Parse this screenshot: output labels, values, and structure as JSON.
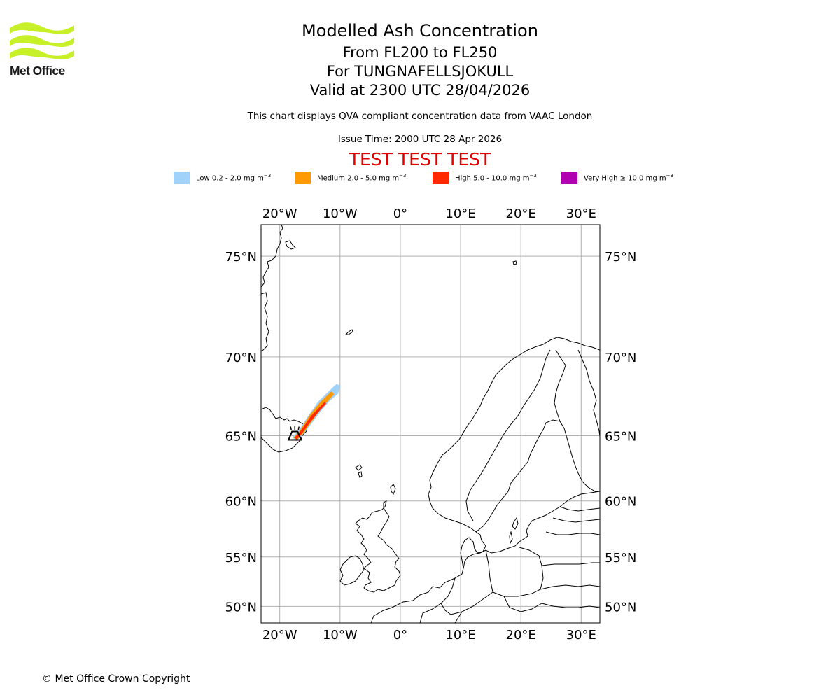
{
  "logo": {
    "text": "Met Office",
    "color": "#c8f028"
  },
  "header": {
    "title": "Modelled Ash Concentration",
    "level_range": "From FL200 to FL250",
    "volcano": "For TUNGNAFELLSJOKULL",
    "valid_time": "Valid at 2300 UTC 28/04/2026",
    "description": "This chart displays QVA compliant concentration data from VAAC London",
    "issue_time": "Issue Time: 2000 UTC 28 Apr 2026",
    "test_banner": "TEST TEST TEST"
  },
  "legend": [
    {
      "label": "Low 0.2 - 2.0 mg m",
      "unit_exp": "−3",
      "color": "#a0d2fa"
    },
    {
      "label": "Medium 2.0 - 5.0 mg m",
      "unit_exp": "−3",
      "color": "#ff9a00"
    },
    {
      "label": "High 5.0 - 10.0 mg m",
      "unit_exp": "−3",
      "color": "#ff2a00"
    },
    {
      "label": "Very High  ≥  10.0 mg m",
      "unit_exp": "−3",
      "color": "#b000b0"
    }
  ],
  "map": {
    "lon_ticks": [
      {
        "lon": -20,
        "label": "20°W"
      },
      {
        "lon": -10,
        "label": "10°W"
      },
      {
        "lon": 0,
        "label": "0°"
      },
      {
        "lon": 10,
        "label": "10°E"
      },
      {
        "lon": 20,
        "label": "20°E"
      },
      {
        "lon": 30,
        "label": "30°E"
      }
    ],
    "lat_ticks": [
      {
        "lat": 75,
        "label": "75°N"
      },
      {
        "lat": 70,
        "label": "70°N"
      },
      {
        "lat": 65,
        "label": "65°N"
      },
      {
        "lat": 60,
        "label": "60°N"
      },
      {
        "lat": 55,
        "label": "55°N"
      },
      {
        "lat": 50,
        "label": "50°N"
      }
    ],
    "lon_range": [
      -23.1,
      33.1
    ],
    "lat_range": [
      48.2,
      76.3
    ],
    "grid": true,
    "volcano_icon": "volcano-triangle-icon",
    "volcano_lon": -17.5,
    "volcano_lat": 65.0,
    "plume": [
      {
        "level": "low",
        "color": "#a0d2fa",
        "path": [
          [
            -17.9,
            64.9
          ],
          [
            -16.8,
            65.4
          ],
          [
            -15.2,
            66.4
          ],
          [
            -13.6,
            67.3
          ],
          [
            -12.0,
            67.9
          ],
          [
            -10.6,
            68.4
          ],
          [
            -10.0,
            68.3
          ],
          [
            -10.3,
            67.8
          ],
          [
            -11.8,
            67.3
          ],
          [
            -13.3,
            66.6
          ],
          [
            -14.8,
            65.8
          ],
          [
            -16.3,
            65.0
          ],
          [
            -17.3,
            64.6
          ]
        ]
      },
      {
        "level": "medium",
        "color": "#ff9a00",
        "path": [
          [
            -17.7,
            64.85
          ],
          [
            -16.5,
            65.45
          ],
          [
            -14.9,
            66.5
          ],
          [
            -13.2,
            67.3
          ],
          [
            -11.4,
            67.95
          ],
          [
            -11.0,
            67.75
          ],
          [
            -12.8,
            67.0
          ],
          [
            -14.5,
            66.1
          ],
          [
            -16.1,
            65.15
          ],
          [
            -17.1,
            64.7
          ]
        ]
      },
      {
        "level": "high",
        "color": "#ff2a00",
        "path": [
          [
            -17.55,
            64.85
          ],
          [
            -16.4,
            65.4
          ],
          [
            -14.8,
            66.35
          ],
          [
            -13.1,
            67.05
          ],
          [
            -12.5,
            67.3
          ],
          [
            -12.3,
            67.15
          ],
          [
            -13.6,
            66.6
          ],
          [
            -15.2,
            65.8
          ],
          [
            -16.6,
            65.0
          ],
          [
            -17.2,
            64.75
          ]
        ]
      }
    ]
  },
  "footer": {
    "copyright": "© Met Office Crown Copyright"
  }
}
